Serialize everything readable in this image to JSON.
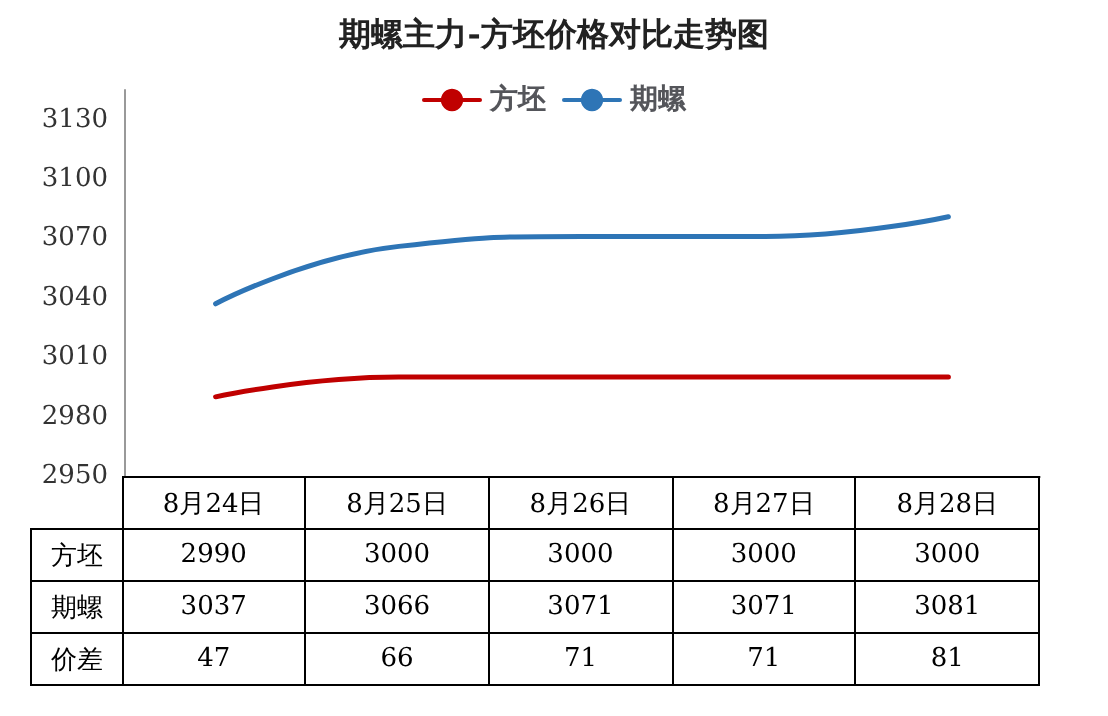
{
  "chart_data": {
    "type": "line",
    "title": "期螺主力-方坯价格对比走势图",
    "categories": [
      "8月24日",
      "8月25日",
      "8月26日",
      "8月27日",
      "8月28日"
    ],
    "series": [
      {
        "name": "方坯",
        "color": "#c00000",
        "values": [
          2990,
          3000,
          3000,
          3000,
          3000
        ]
      },
      {
        "name": "期螺",
        "color": "#2e75b6",
        "values": [
          3037,
          3066,
          3071,
          3071,
          3081
        ]
      }
    ],
    "annotations": [
      "价差",
      "47",
      "66",
      "71",
      "71",
      "81"
    ],
    "ylim": [
      2950,
      3145
    ],
    "yticks": [
      2950,
      2980,
      3010,
      3040,
      3070,
      3100,
      3130
    ],
    "grid": false,
    "legend": "top",
    "marker": "none",
    "line_style": "solid",
    "data_labels": true
  }
}
